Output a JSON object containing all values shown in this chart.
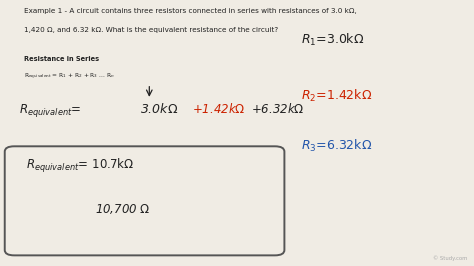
{
  "bg_color": "#f0ece4",
  "text_color": "#222222",
  "red_color": "#cc2200",
  "blue_color": "#2255aa",
  "watermark": "© Study.com",
  "line1": "Example 1 - A circuit contains three resistors connected in series with resistances of 3.0 kΩ,",
  "line2": "1,420 Ω, and 6.32 kΩ. What is the equivalent resistance of the circuit?",
  "section_bold": "Resistance in Series",
  "section_formula": "Rₑquivalent = R₁ + R₂ + R₃ ... Rₙ"
}
